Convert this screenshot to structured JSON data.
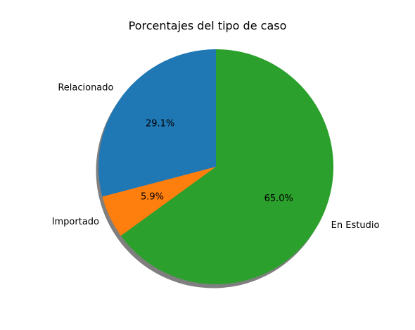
{
  "chart_data": {
    "type": "pie",
    "title": "Porcentajes del tipo de caso",
    "categories": [
      "Relacionado",
      "Importado",
      "En Estudio"
    ],
    "values": [
      29.1,
      5.9,
      65.0
    ],
    "value_labels": [
      "29.1%",
      "5.9%",
      "65.0%"
    ],
    "colors": [
      "#1f77b4",
      "#ff7f0e",
      "#2ca02c"
    ],
    "start_angle": 90,
    "direction": "counterclockwise",
    "shadow": true,
    "legend": "none"
  }
}
